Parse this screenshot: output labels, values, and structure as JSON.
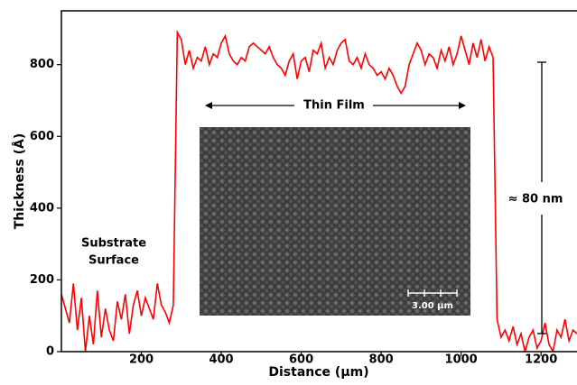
{
  "chart_data": {
    "type": "line",
    "x_label": "Distance (µm)",
    "y_label": "Thickness (Å)",
    "xlim": [
      0,
      1290
    ],
    "ylim": [
      0,
      950
    ],
    "xticks": [
      200,
      400,
      600,
      800,
      1000,
      1200
    ],
    "yticks": [
      0,
      200,
      400,
      600,
      800
    ],
    "grid": false,
    "x": [
      0,
      10,
      20,
      30,
      40,
      50,
      60,
      70,
      80,
      90,
      100,
      110,
      120,
      130,
      140,
      150,
      160,
      170,
      180,
      190,
      200,
      210,
      220,
      230,
      240,
      250,
      260,
      270,
      280,
      290,
      300,
      310,
      320,
      330,
      340,
      350,
      360,
      370,
      380,
      390,
      400,
      410,
      420,
      430,
      440,
      450,
      460,
      470,
      480,
      490,
      500,
      510,
      520,
      530,
      540,
      550,
      560,
      570,
      580,
      590,
      600,
      610,
      620,
      630,
      640,
      650,
      660,
      670,
      680,
      690,
      700,
      710,
      720,
      730,
      740,
      750,
      760,
      770,
      780,
      790,
      800,
      810,
      820,
      830,
      840,
      850,
      860,
      870,
      880,
      890,
      900,
      910,
      920,
      930,
      940,
      950,
      960,
      970,
      980,
      990,
      1000,
      1010,
      1020,
      1030,
      1040,
      1050,
      1060,
      1070,
      1080,
      1090,
      1100,
      1110,
      1120,
      1130,
      1140,
      1150,
      1160,
      1170,
      1180,
      1190,
      1200,
      1210,
      1220,
      1230,
      1240,
      1250,
      1260,
      1270,
      1280,
      1290
    ],
    "series": [
      {
        "color": "#ff0000",
        "values": [
          160,
          120,
          80,
          190,
          60,
          150,
          0,
          100,
          20,
          170,
          40,
          120,
          60,
          30,
          140,
          90,
          160,
          50,
          130,
          170,
          100,
          150,
          120,
          90,
          190,
          130,
          110,
          80,
          130,
          890,
          870,
          800,
          840,
          790,
          820,
          810,
          850,
          800,
          830,
          820,
          860,
          880,
          830,
          810,
          800,
          820,
          810,
          850,
          860,
          850,
          840,
          830,
          850,
          820,
          800,
          790,
          770,
          810,
          830,
          760,
          810,
          820,
          780,
          840,
          830,
          860,
          790,
          820,
          800,
          840,
          860,
          870,
          810,
          800,
          820,
          790,
          830,
          800,
          790,
          770,
          780,
          760,
          790,
          770,
          740,
          720,
          740,
          800,
          830,
          860,
          840,
          800,
          830,
          820,
          790,
          840,
          810,
          850,
          800,
          830,
          880,
          840,
          800,
          860,
          820,
          870,
          810,
          850,
          820,
          90,
          40,
          60,
          30,
          70,
          20,
          50,
          0,
          40,
          60,
          10,
          30,
          80,
          20,
          0,
          60,
          40,
          90,
          30,
          60,
          50
        ]
      }
    ],
    "annotations": {
      "thin_film": "Thin Film",
      "substrate": [
        "Substrate",
        "Surface"
      ],
      "step": "≈ 80 nm",
      "scale_bar": "3.00 µm"
    }
  }
}
